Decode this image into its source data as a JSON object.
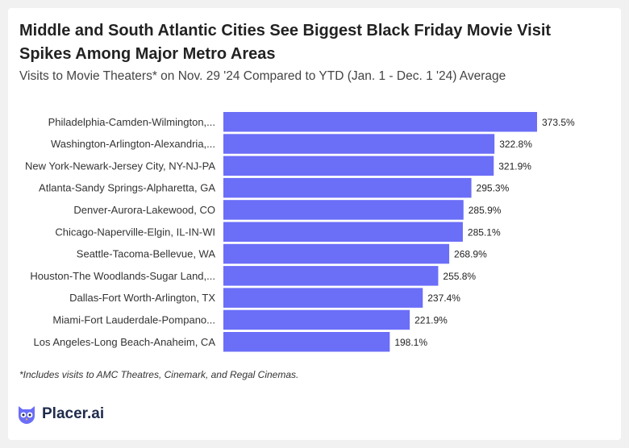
{
  "title": "Middle and South Atlantic Cities See Biggest Black Friday Movie Visit Spikes Among Major Metro Areas",
  "subtitle": "Visits to Movie Theaters* on Nov. 29 '24 Compared to YTD (Jan. 1 - Dec. 1 '24) Average",
  "footnote": "*Includes visits to AMC Theatres, Cinemark, and Regal Cinemas.",
  "brand": {
    "name": "Placer.ai",
    "logo_icon": "owl-icon"
  },
  "chart_data": {
    "type": "bar",
    "orientation": "horizontal",
    "bar_color": "#6b6ef7",
    "grid": false,
    "categories": [
      "Philadelphia-Camden-Wilmington,...",
      "Washington-Arlington-Alexandria,...",
      "New York-Newark-Jersey City, NY-NJ-PA",
      "Atlanta-Sandy Springs-Alpharetta, GA",
      "Denver-Aurora-Lakewood, CO",
      "Chicago-Naperville-Elgin, IL-IN-WI",
      "Seattle-Tacoma-Bellevue, WA",
      "Houston-The Woodlands-Sugar Land,...",
      "Dallas-Fort Worth-Arlington, TX",
      "Miami-Fort Lauderdale-Pompano...",
      "Los Angeles-Long Beach-Anaheim, CA"
    ],
    "values": [
      373.5,
      322.8,
      321.9,
      295.3,
      285.9,
      285.1,
      268.9,
      255.8,
      237.4,
      221.9,
      198.1
    ],
    "value_labels": [
      "373.5%",
      "322.8%",
      "321.9%",
      "295.3%",
      "285.9%",
      "285.1%",
      "268.9%",
      "255.8%",
      "237.4%",
      "221.9%",
      "198.1%"
    ],
    "xlim": [
      0,
      373.5
    ]
  }
}
